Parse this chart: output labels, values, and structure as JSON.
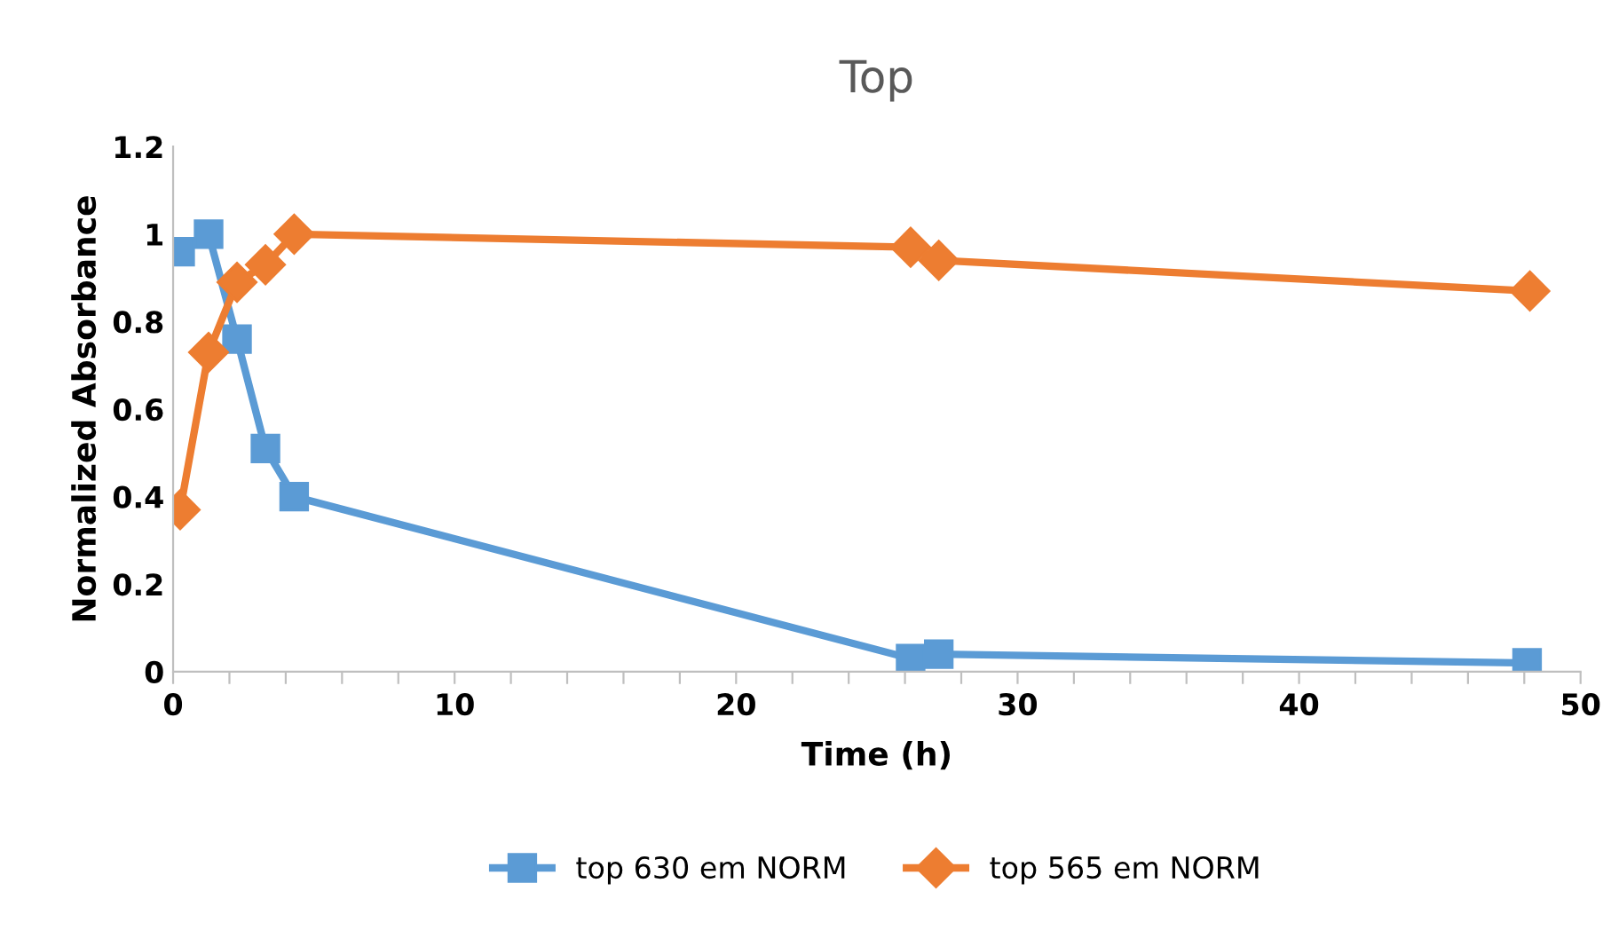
{
  "chart_data": {
    "type": "line",
    "title": "Top",
    "xlabel": "Time (h)",
    "ylabel": "Normalized Absorbance",
    "xlim": [
      0,
      50
    ],
    "ylim": [
      0,
      1.2
    ],
    "xticks": [
      0,
      {
        "value": 2,
        "label": null
      },
      {
        "value": 4,
        "label": null
      },
      {
        "value": 6,
        "label": null
      },
      {
        "value": 8,
        "label": null
      },
      10,
      {
        "value": 12,
        "label": null
      },
      {
        "value": 14,
        "label": null
      },
      {
        "value": 16,
        "label": null
      },
      {
        "value": 18,
        "label": null
      },
      20,
      {
        "value": 22,
        "label": null
      },
      {
        "value": 24,
        "label": null
      },
      {
        "value": 26,
        "label": null
      },
      {
        "value": 28,
        "label": null
      },
      30,
      {
        "value": 32,
        "label": null
      },
      {
        "value": 34,
        "label": null
      },
      {
        "value": 36,
        "label": null
      },
      {
        "value": 38,
        "label": null
      },
      40,
      {
        "value": 42,
        "label": null
      },
      {
        "value": 44,
        "label": null
      },
      {
        "value": 46,
        "label": null
      },
      {
        "value": 48,
        "label": null
      },
      50
    ],
    "yticks": [
      0,
      0.2,
      0.4,
      0.6,
      0.8,
      1,
      1.2
    ],
    "grid": false,
    "legend": "bottom",
    "series": [
      {
        "name": "top 630 em NORM",
        "color": "#5b9bd5",
        "marker": "square",
        "x": [
          0.25,
          1.26,
          2.27,
          3.28,
          4.3,
          26.2,
          27.2,
          48.1
        ],
        "values": [
          0.96,
          1.0,
          0.76,
          0.51,
          0.4,
          0.03,
          0.04,
          0.02
        ]
      },
      {
        "name": "top 565 em NORM",
        "color": "#ed7d31",
        "marker": "diamond",
        "x": [
          0.25,
          1.26,
          2.27,
          3.28,
          4.3,
          26.2,
          27.2,
          48.2
        ],
        "values": [
          0.37,
          0.73,
          0.89,
          0.93,
          1.0,
          0.97,
          0.94,
          0.87
        ]
      }
    ]
  }
}
